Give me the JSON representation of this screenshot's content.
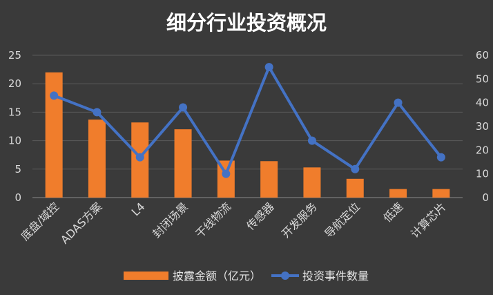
{
  "colors": {
    "background": "#3a3a3a",
    "bar": "#f07d2c",
    "line": "#4472c4",
    "text": "#d9d9d9",
    "grid": "#5a5a5a"
  },
  "chart_data": {
    "type": "bar",
    "title": "细分行业投资概况",
    "categories": [
      "底盘/域控",
      "ADAS方案",
      "L4",
      "封闭场景",
      "干线物流",
      "传感器",
      "开发服务",
      "导航定位",
      "低速",
      "计算芯片"
    ],
    "series": [
      {
        "name": "披露金额（亿元）",
        "type": "bar",
        "axis": "left",
        "values": [
          22,
          13.7,
          13.2,
          12,
          6.5,
          6.4,
          5.3,
          3.3,
          1.5,
          1.5
        ]
      },
      {
        "name": "投资事件数量",
        "type": "line",
        "axis": "right",
        "values": [
          43,
          36,
          17,
          38,
          10,
          55,
          24,
          12,
          40,
          17
        ]
      }
    ],
    "y_left": {
      "min": 0,
      "max": 25,
      "ticks": [
        "0",
        "5",
        "10",
        "15",
        "20",
        "25"
      ]
    },
    "y_right": {
      "min": 0,
      "max": 60,
      "ticks": [
        "0",
        "10",
        "20",
        "30",
        "40",
        "50",
        "60"
      ]
    },
    "grid": true,
    "legend_position": "bottom"
  }
}
